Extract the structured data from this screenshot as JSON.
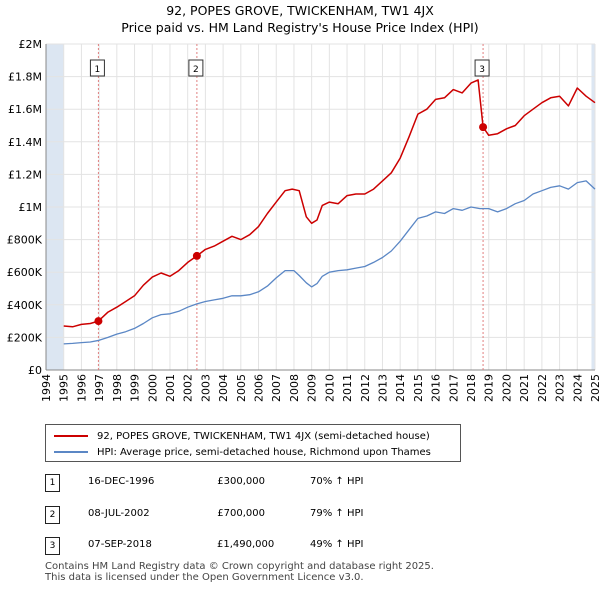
{
  "title": "92, POPES GROVE, TWICKENHAM, TW1 4JX",
  "subtitle": "Price paid vs. HM Land Registry's House Price Index (HPI)",
  "colors": {
    "property": "#cc0000",
    "hpi": "#5b87c5",
    "band": "#dce6f2",
    "marker": "#cc0000",
    "vline": "#e08080"
  },
  "legend": {
    "property_label": "92, POPES GROVE, TWICKENHAM, TW1 4JX (semi-detached house)",
    "hpi_label": "HPI: Average price, semi-detached house, Richmond upon Thames"
  },
  "sales": [
    {
      "num": "1",
      "date": "16-DEC-1996",
      "price": "£300,000",
      "hpi": "70% ↑ HPI"
    },
    {
      "num": "2",
      "date": "08-JUL-2002",
      "price": "£700,000",
      "hpi": "79% ↑ HPI"
    },
    {
      "num": "3",
      "date": "07-SEP-2018",
      "price": "£1,490,000",
      "hpi": "49% ↑ HPI"
    }
  ],
  "footer": {
    "line1": "Contains HM Land Registry data © Crown copyright and database right 2025.",
    "line2": "This data is licensed under the Open Government Licence v3.0."
  },
  "chart_data": {
    "type": "line",
    "title": "92, POPES GROVE, TWICKENHAM, TW1 4JX",
    "subtitle": "Price paid vs. HM Land Registry's House Price Index (HPI)",
    "xlim": [
      1994,
      2025
    ],
    "ylim": [
      0,
      2000000
    ],
    "x_ticks": [
      1994,
      1995,
      1996,
      1997,
      1998,
      1999,
      2000,
      2001,
      2002,
      2003,
      2004,
      2005,
      2006,
      2007,
      2008,
      2009,
      2010,
      2011,
      2012,
      2013,
      2014,
      2015,
      2016,
      2017,
      2018,
      2019,
      2020,
      2021,
      2022,
      2023,
      2024,
      2025
    ],
    "y_ticks": [
      {
        "value": 0,
        "label": "£0"
      },
      {
        "value": 200000,
        "label": "£200K"
      },
      {
        "value": 400000,
        "label": "£400K"
      },
      {
        "value": 600000,
        "label": "£600K"
      },
      {
        "value": 800000,
        "label": "£800K"
      },
      {
        "value": 1000000,
        "label": "£1M"
      },
      {
        "value": 1200000,
        "label": "£1.2M"
      },
      {
        "value": 1400000,
        "label": "£1.4M"
      },
      {
        "value": 1600000,
        "label": "£1.6M"
      },
      {
        "value": 1800000,
        "label": "£1.8M"
      },
      {
        "value": 2000000,
        "label": "£2M"
      }
    ],
    "grid": true,
    "sale_events": [
      {
        "label": "1",
        "x": 1996.96,
        "y": 300000
      },
      {
        "label": "2",
        "x": 2002.52,
        "y": 700000
      },
      {
        "label": "3",
        "x": 2018.68,
        "y": 1490000
      }
    ],
    "series": [
      {
        "name": "92, POPES GROVE, TWICKENHAM, TW1 4JX (semi-detached house)",
        "x": [
          1995.0,
          1995.5,
          1996.0,
          1996.5,
          1996.96,
          1997.5,
          1998.0,
          1998.5,
          1999.0,
          1999.5,
          2000.0,
          2000.5,
          2001.0,
          2001.5,
          2002.0,
          2002.52,
          2003.0,
          2003.5,
          2004.0,
          2004.5,
          2005.0,
          2005.5,
          2006.0,
          2006.5,
          2007.0,
          2007.5,
          2007.9,
          2008.3,
          2008.7,
          2009.0,
          2009.3,
          2009.6,
          2010.0,
          2010.5,
          2011.0,
          2011.5,
          2012.0,
          2012.5,
          2013.0,
          2013.5,
          2014.0,
          2014.5,
          2015.0,
          2015.5,
          2016.0,
          2016.5,
          2017.0,
          2017.5,
          2018.0,
          2018.4,
          2018.68,
          2019.0,
          2019.5,
          2020.0,
          2020.5,
          2021.0,
          2021.5,
          2022.0,
          2022.5,
          2023.0,
          2023.5,
          2024.0,
          2024.5,
          2025.0
        ],
        "y": [
          270000,
          265000,
          280000,
          285000,
          300000,
          355000,
          385000,
          420000,
          455000,
          520000,
          570000,
          595000,
          575000,
          610000,
          660000,
          700000,
          740000,
          760000,
          790000,
          820000,
          800000,
          830000,
          880000,
          960000,
          1030000,
          1100000,
          1110000,
          1100000,
          940000,
          900000,
          920000,
          1010000,
          1030000,
          1020000,
          1070000,
          1080000,
          1080000,
          1110000,
          1160000,
          1210000,
          1300000,
          1430000,
          1570000,
          1600000,
          1660000,
          1670000,
          1720000,
          1700000,
          1760000,
          1780000,
          1490000,
          1440000,
          1450000,
          1480000,
          1500000,
          1560000,
          1600000,
          1640000,
          1670000,
          1680000,
          1620000,
          1730000,
          1680000,
          1640000
        ]
      },
      {
        "name": "HPI: Average price, semi-detached house, Richmond upon Thames",
        "x": [
          1995.0,
          1995.5,
          1996.0,
          1996.5,
          1997.0,
          1997.5,
          1998.0,
          1998.5,
          1999.0,
          1999.5,
          2000.0,
          2000.5,
          2001.0,
          2001.5,
          2002.0,
          2002.5,
          2003.0,
          2003.5,
          2004.0,
          2004.5,
          2005.0,
          2005.5,
          2006.0,
          2006.5,
          2007.0,
          2007.5,
          2008.0,
          2008.3,
          2008.7,
          2009.0,
          2009.3,
          2009.6,
          2010.0,
          2010.5,
          2011.0,
          2011.5,
          2012.0,
          2012.5,
          2013.0,
          2013.5,
          2014.0,
          2014.5,
          2015.0,
          2015.5,
          2016.0,
          2016.5,
          2017.0,
          2017.5,
          2018.0,
          2018.5,
          2019.0,
          2019.5,
          2020.0,
          2020.5,
          2021.0,
          2021.5,
          2022.0,
          2022.5,
          2023.0,
          2023.5,
          2024.0,
          2024.5,
          2025.0
        ],
        "y": [
          160000,
          163000,
          168000,
          172000,
          182000,
          200000,
          220000,
          235000,
          255000,
          285000,
          320000,
          340000,
          345000,
          360000,
          385000,
          405000,
          420000,
          430000,
          440000,
          455000,
          455000,
          462000,
          480000,
          515000,
          565000,
          610000,
          610000,
          580000,
          535000,
          510000,
          530000,
          575000,
          600000,
          610000,
          615000,
          625000,
          635000,
          660000,
          690000,
          730000,
          790000,
          860000,
          930000,
          945000,
          970000,
          960000,
          990000,
          980000,
          1000000,
          990000,
          990000,
          970000,
          990000,
          1020000,
          1040000,
          1080000,
          1100000,
          1120000,
          1130000,
          1110000,
          1150000,
          1160000,
          1110000
        ]
      }
    ]
  }
}
